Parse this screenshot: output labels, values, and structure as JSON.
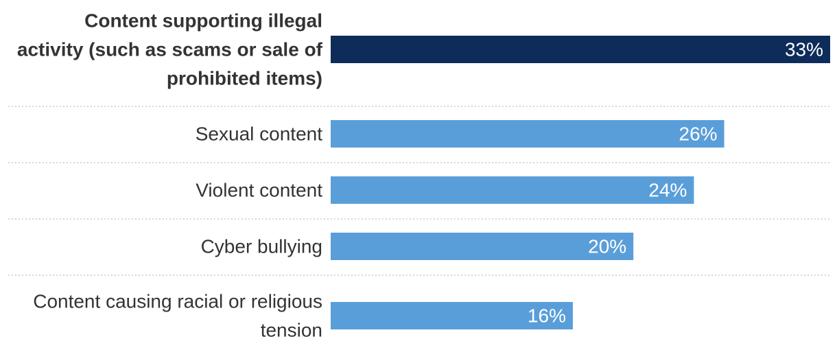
{
  "chart_data": {
    "type": "bar",
    "orientation": "horizontal",
    "categories": [
      "Content supporting illegal activity (such as scams or sale of prohibited items)",
      "Sexual content",
      "Violent content",
      "Cyber bullying",
      "Content causing racial or religious tension"
    ],
    "category_lines": [
      [
        "Content supporting illegal",
        "activity (such as scams or sale of",
        "prohibited items)"
      ],
      [
        "Sexual content"
      ],
      [
        "Violent content"
      ],
      [
        "Cyber bullying"
      ],
      [
        "Content causing racial or religious",
        "tension"
      ]
    ],
    "values": [
      33,
      26,
      24,
      20,
      16
    ],
    "value_labels": [
      "33%",
      "26%",
      "24%",
      "20%",
      "16%"
    ],
    "highlight_index": 0,
    "colors": {
      "highlight": "#0d2c5a",
      "default": "#5a9ed9",
      "value_text": "#ffffff",
      "label_text": "#333333",
      "separator": "#c8c8c8"
    },
    "xlim": [
      0,
      33
    ],
    "grid": false,
    "legend": "none"
  }
}
